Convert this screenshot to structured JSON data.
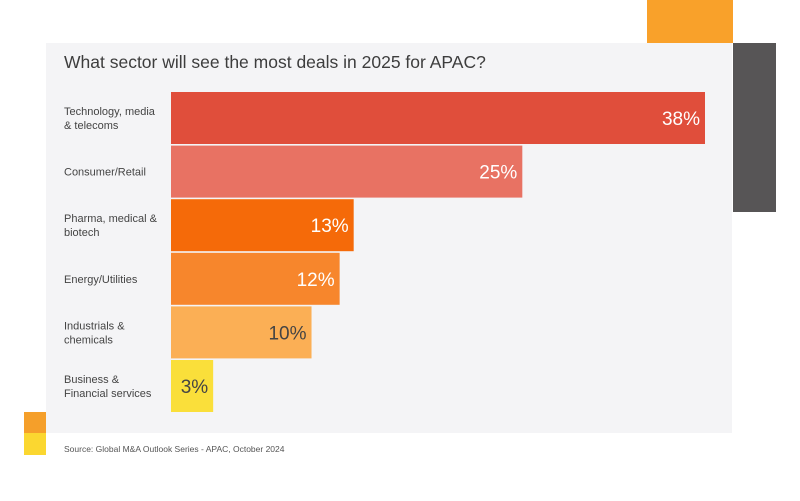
{
  "chart_data": {
    "type": "bar",
    "orientation": "horizontal",
    "title": "What sector will see the most deals in 2025 for APAC?",
    "categories": [
      [
        "Technology, media",
        "& telecoms"
      ],
      [
        "Consumer/Retail"
      ],
      [
        "Pharma, medical &",
        "biotech"
      ],
      [
        "Energy/Utilities"
      ],
      [
        "Industrials &",
        "chemicals"
      ],
      [
        "Business &",
        "Financial services"
      ]
    ],
    "values": [
      38,
      25,
      13,
      12,
      10,
      3
    ],
    "value_labels": [
      "38%",
      "25%",
      "13%",
      "12%",
      "10%",
      "3%"
    ],
    "unit": "%",
    "xlim": [
      0,
      38
    ],
    "grid": false,
    "legend": "none",
    "colors": [
      "#e04e3b",
      "#e87263",
      "#f56a09",
      "#f7862c",
      "#fbaf55",
      "#fadf3a"
    ],
    "label_colors": [
      "#ffffff",
      "#ffffff",
      "#ffffff",
      "#ffffff",
      "#444444",
      "#444444"
    ]
  },
  "source": "Source: Global M&A Outlook Series - APAC, October 2024"
}
